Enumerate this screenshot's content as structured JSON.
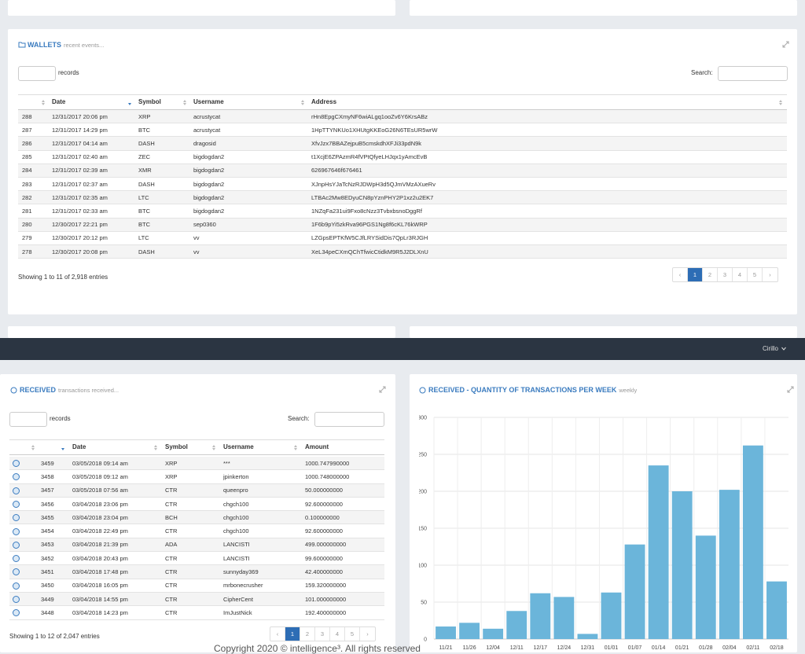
{
  "wallets": {
    "title": "WALLETS",
    "subtitle": "recent events...",
    "records_label": "records",
    "search_label": "Search:",
    "columns": [
      "Date",
      "Symbol",
      "Username",
      "Address"
    ],
    "rows": [
      [
        288,
        "12/31/2017 20:06 pm",
        "XRP",
        "acrustycat",
        "rHn8EpgCXmyNF6wiALgq1ooZv6Y6KrsABz"
      ],
      [
        287,
        "12/31/2017 14:29 pm",
        "BTC",
        "acrustycat",
        "1HpTTYNKUo1XHUtgKKEoG26N6TEsUR5wrW"
      ],
      [
        286,
        "12/31/2017 04:14 am",
        "DASH",
        "dragosid",
        "XfvJzx7BBAZejpuB5cmskdhXFJi33pdN9k"
      ],
      [
        285,
        "12/31/2017 02:40 am",
        "ZEC",
        "bigdogdan2",
        "t1XcjE6ZPAzmR4fVPtQfyeLHJqx1yAmcEvB"
      ],
      [
        284,
        "12/31/2017 02:39 am",
        "XMR",
        "bigdogdan2",
        "626967646f676461"
      ],
      [
        283,
        "12/31/2017 02:37 am",
        "DASH",
        "bigdogdan2",
        "XJnpHsYJaTcNzRJDWpH3d5QJmVMzAXueRv"
      ],
      [
        282,
        "12/31/2017 02:35 am",
        "LTC",
        "bigdogdan2",
        "LTBAc2Mw8EDyuCN8pYznPHY2P1xz2u2EK7"
      ],
      [
        281,
        "12/31/2017 02:33 am",
        "BTC",
        "bigdogdan2",
        "1NZqFa231ui9Fxo8cNzz3TvbxbsnoDggRf"
      ],
      [
        280,
        "12/30/2017 22:21 pm",
        "BTC",
        "sep0360",
        "1F6b9pYi5zkRva96PGS1Ng8f6cKL76kWRP"
      ],
      [
        279,
        "12/30/2017 20:12 pm",
        "LTC",
        "vv",
        "LZGpsEPTKfW5CJfLRYSidDis7QpLr3RJGH"
      ],
      [
        278,
        "12/30/2017 20:08 pm",
        "DASH",
        "vv",
        "XeL34peCXmQChTfwicCtidkM9R5J2DLXnU"
      ]
    ],
    "info": "Showing 1 to 11 of 2,918 entries",
    "prev": "‹",
    "next": "›",
    "pages": [
      1,
      2,
      3,
      4,
      5
    ]
  },
  "navbar": {
    "user": "Cirillo"
  },
  "received": {
    "title": "RECEIVED",
    "subtitle": "transactions received...",
    "records_label": "records",
    "search_label": "Search:",
    "columns": [
      "Date",
      "Symbol",
      "Username",
      "Amount"
    ],
    "rows": [
      [
        3459,
        "03/05/2018 09:14 am",
        "XRP",
        "***",
        "1000.747990000"
      ],
      [
        3458,
        "03/05/2018 09:12 am",
        "XRP",
        "jpinkerton",
        "1000.748000000"
      ],
      [
        3457,
        "03/05/2018 07:56 am",
        "CTR",
        "queenpro",
        "50.000000000"
      ],
      [
        3456,
        "03/04/2018 23:06 pm",
        "CTR",
        "chgch100",
        "92.600000000"
      ],
      [
        3455,
        "03/04/2018 23:04 pm",
        "BCH",
        "chgch100",
        "0.100000000"
      ],
      [
        3454,
        "03/04/2018 22:49 pm",
        "CTR",
        "chgch100",
        "92.600000000"
      ],
      [
        3453,
        "03/04/2018 21:39 pm",
        "ADA",
        "LANCISTI",
        "499.000000000"
      ],
      [
        3452,
        "03/04/2018 20:43 pm",
        "CTR",
        "LANCISTI",
        "99.600000000"
      ],
      [
        3451,
        "03/04/2018 17:48 pm",
        "CTR",
        "sunnyday369",
        "42.400000000"
      ],
      [
        3450,
        "03/04/2018 16:05 pm",
        "CTR",
        "mrbonecrusher",
        "159.320000000"
      ],
      [
        3449,
        "03/04/2018 14:55 pm",
        "CTR",
        "CipherCent",
        "101.000000000"
      ],
      [
        3448,
        "03/04/2018 14:23 pm",
        "CTR",
        "ImJustNick",
        "192.400000000"
      ]
    ],
    "info": "Showing 1 to 12 of 2,047 entries",
    "prev": "‹",
    "next": "›",
    "pages": [
      1,
      2,
      3,
      4,
      5
    ]
  },
  "chart_data": {
    "type": "bar",
    "title": "RECEIVED - QUANTITY OF TRANSACTIONS PER WEEK",
    "subtitle": "weekly",
    "categories": [
      "11/21",
      "11/26",
      "12/04",
      "12/11",
      "12/17",
      "12/24",
      "12/31",
      "01/01",
      "01/07",
      "01/14",
      "01/21",
      "01/28",
      "02/04",
      "02/11",
      "02/18"
    ],
    "values": [
      17,
      22,
      14,
      38,
      62,
      57,
      7,
      63,
      128,
      235,
      200,
      140,
      202,
      262,
      78
    ],
    "color": "#6bb5da",
    "ylim": [
      0,
      300
    ],
    "yticks": [
      0,
      50,
      100,
      150,
      200,
      250,
      300
    ],
    "grid": true
  },
  "footer": {
    "text": "Copyright 2020 © intelligence³. All rights reserved"
  }
}
